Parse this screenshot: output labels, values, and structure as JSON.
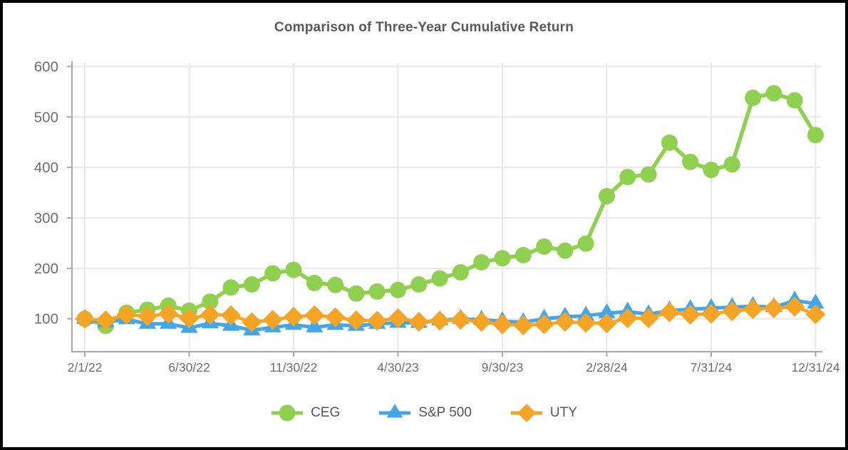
{
  "chart_data": {
    "type": "line",
    "title": "Comparison of Three-Year Cumulative Return",
    "x": [
      "2/1/22",
      "2/28/22",
      "3/31/22",
      "4/30/22",
      "5/31/22",
      "6/30/22",
      "7/31/22",
      "8/31/22",
      "9/30/22",
      "10/31/22",
      "11/30/22",
      "12/31/22",
      "1/31/23",
      "2/28/23",
      "3/31/23",
      "4/30/23",
      "5/31/23",
      "6/30/23",
      "7/31/23",
      "8/31/23",
      "9/30/23",
      "10/31/23",
      "11/30/23",
      "12/31/23",
      "1/31/24",
      "2/28/24",
      "3/31/24",
      "4/30/24",
      "5/31/24",
      "6/30/24",
      "7/31/24",
      "8/31/24",
      "9/30/24",
      "10/31/24",
      "11/30/24",
      "12/31/24"
    ],
    "x_tick_labels": [
      "2/1/22",
      "6/30/22",
      "11/30/22",
      "4/30/23",
      "9/30/23",
      "2/28/24",
      "7/31/24",
      "12/31/24"
    ],
    "x_tick_indices": [
      0,
      5,
      10,
      15,
      20,
      25,
      30,
      35
    ],
    "y_ticks": [
      100,
      200,
      300,
      400,
      500,
      600
    ],
    "ylim": [
      40,
      610
    ],
    "grid": true,
    "legend_position": "bottom",
    "series": [
      {
        "name": "CEG",
        "color": "#8FD14F",
        "marker": "circle",
        "values": [
          100,
          86,
          112,
          118,
          126,
          116,
          134,
          162,
          168,
          190,
          197,
          171,
          167,
          150,
          154,
          157,
          168,
          180,
          192,
          212,
          220,
          226,
          243,
          235,
          249,
          343,
          381,
          386,
          449,
          411,
          395,
          406,
          538,
          547,
          533,
          464
        ]
      },
      {
        "name": "S&P 500",
        "color": "#42A6EC",
        "marker": "triangle",
        "values": [
          100,
          93,
          99,
          90,
          90,
          82,
          91,
          86,
          77,
          83,
          88,
          83,
          88,
          86,
          90,
          92,
          92,
          97,
          100,
          98,
          95,
          93,
          100,
          104,
          106,
          111,
          114,
          109,
          116,
          119,
          121,
          123,
          125,
          123,
          136,
          130
        ]
      },
      {
        "name": "UTY",
        "color": "#F5A423",
        "marker": "diamond",
        "values": [
          100,
          97,
          108,
          105,
          110,
          101,
          108,
          107,
          93,
          98,
          104,
          107,
          103,
          97,
          96,
          101,
          94,
          96,
          98,
          94,
          89,
          87,
          89,
          94,
          92,
          91,
          101,
          101,
          113,
          108,
          110,
          115,
          119,
          121,
          124,
          109
        ]
      }
    ]
  },
  "colors": {
    "title": "#58595B",
    "axis_label": "#6D6E71",
    "legend_label": "#565656",
    "gridline": "#E8E8E8",
    "axis_line": "#A9A9A9",
    "background": "#FFFFFF",
    "border": "#000000"
  }
}
